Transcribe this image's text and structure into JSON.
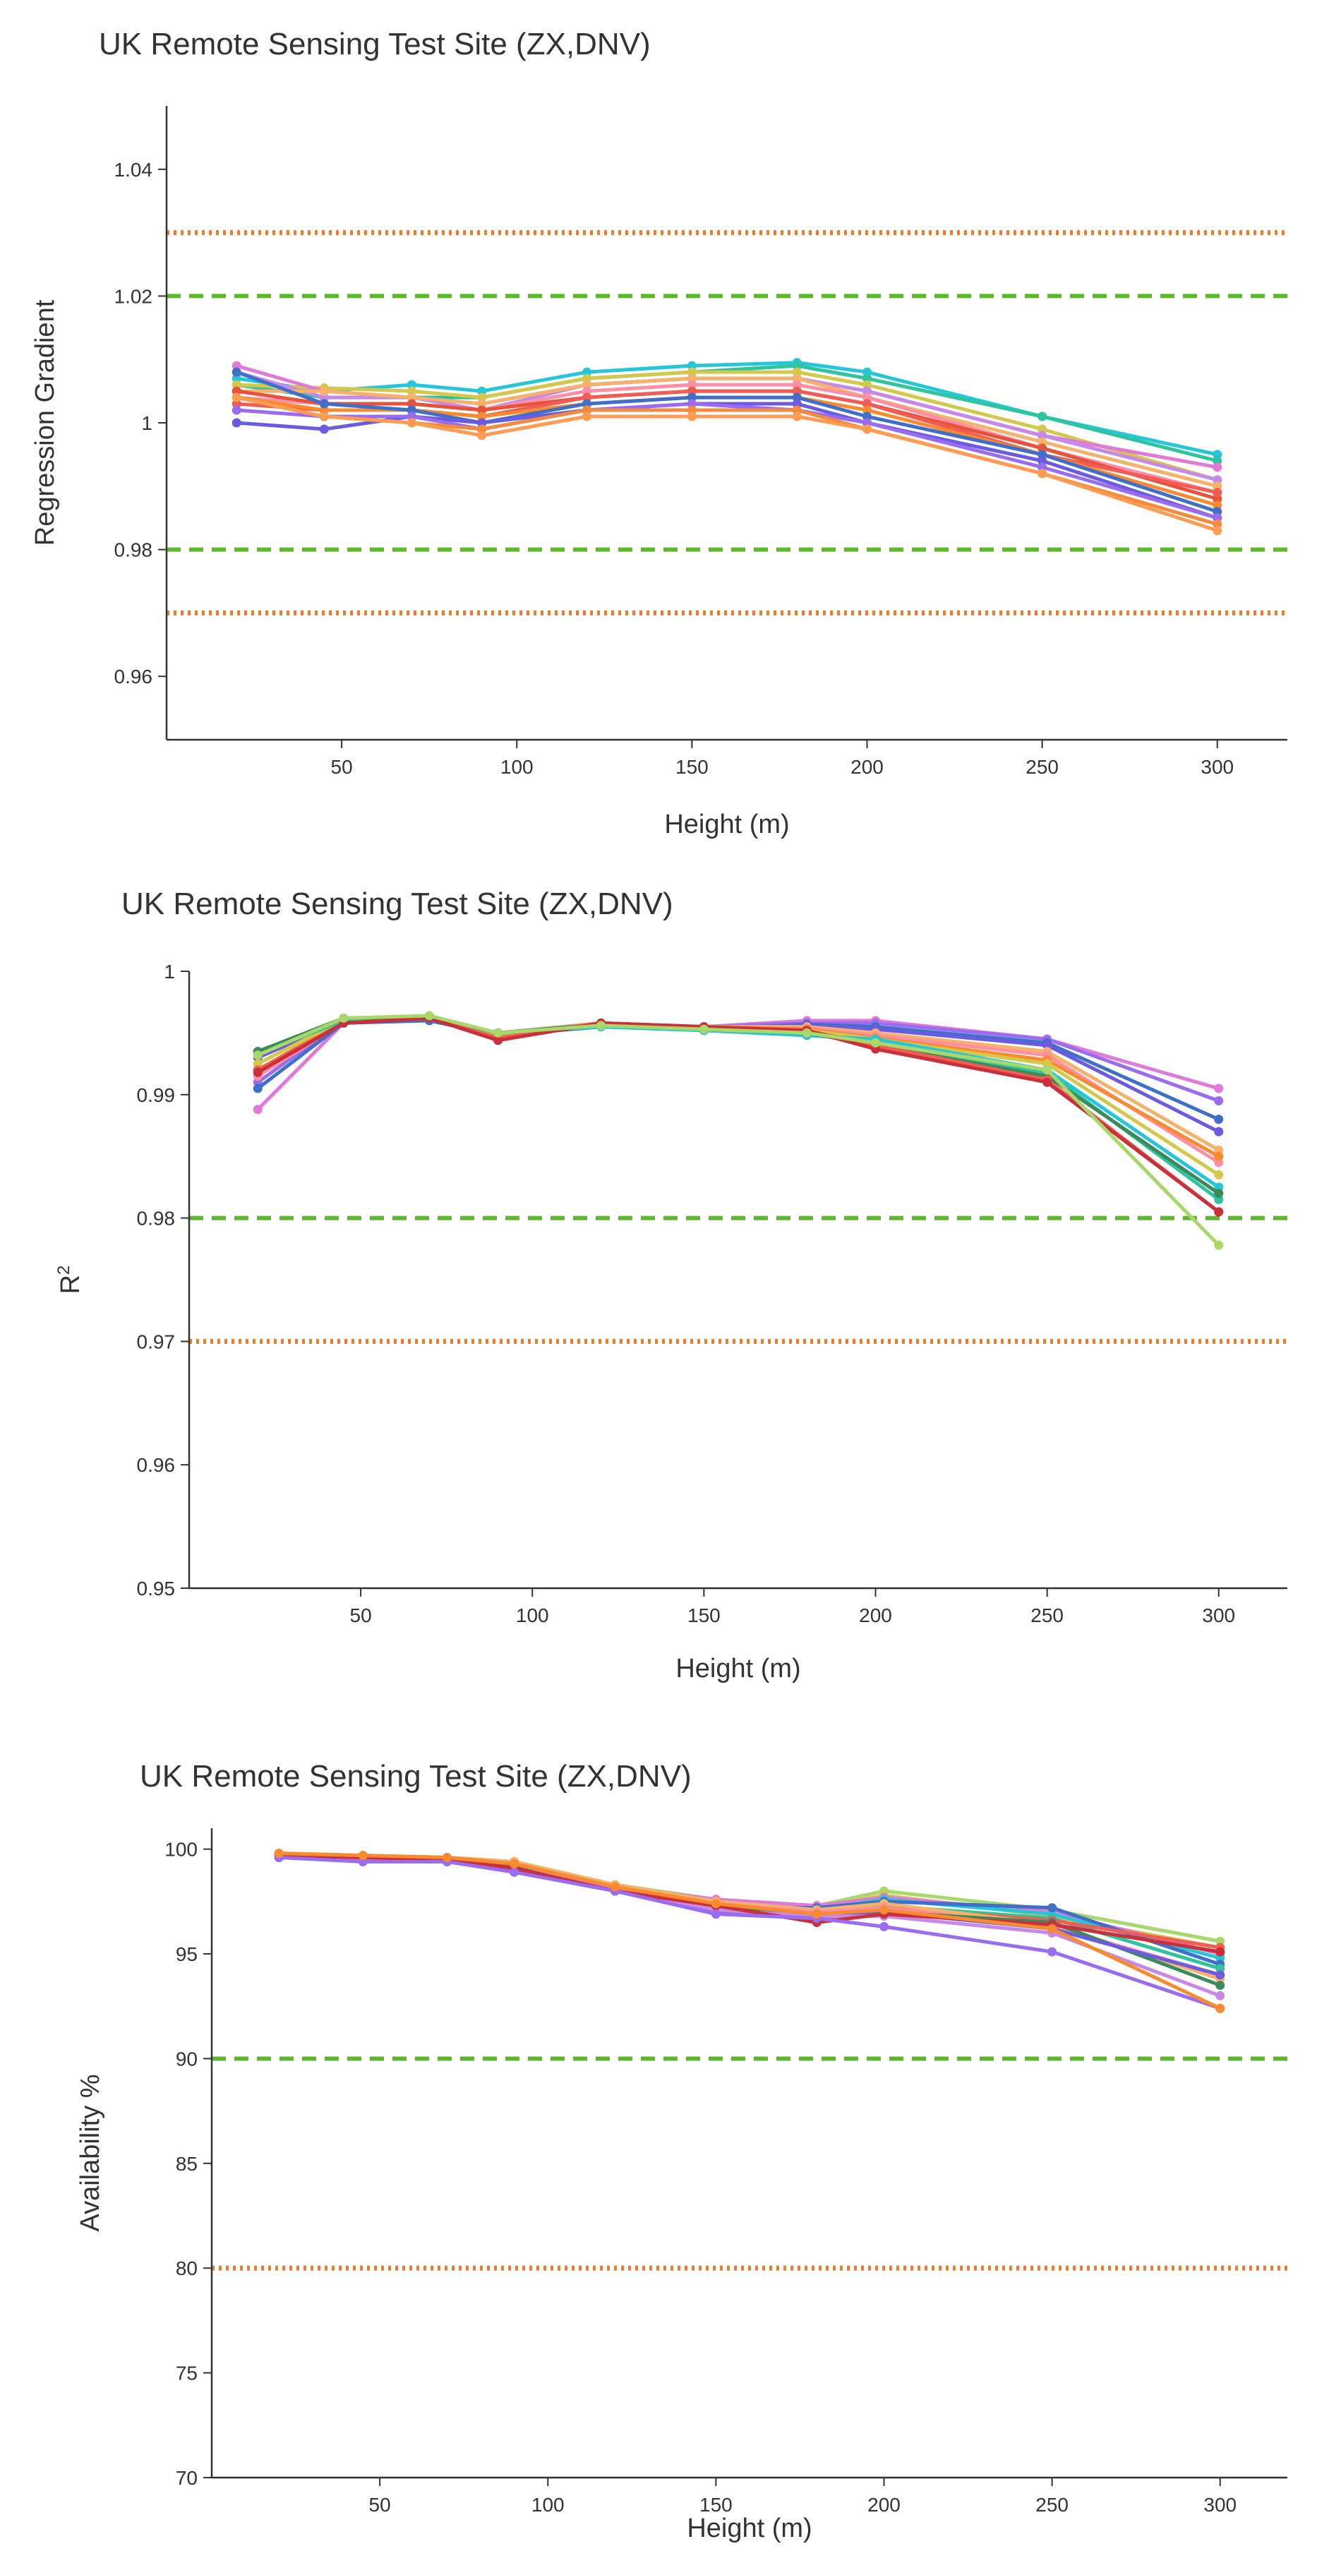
{
  "chart_data": [
    {
      "type": "line",
      "title": "UK Remote Sensing Test Site (ZX,DNV)",
      "xlabel": "Height (m)",
      "ylabel": "Regression Gradient",
      "ylabel_super": "",
      "xlim": [
        0,
        320
      ],
      "ylim": [
        0.95,
        1.05
      ],
      "xticks": [
        50,
        100,
        150,
        200,
        250,
        300
      ],
      "yticks": [
        0.96,
        0.98,
        1,
        1.02,
        1.04
      ],
      "x": [
        20,
        45,
        70,
        90,
        120,
        150,
        180,
        200,
        250,
        300
      ],
      "reference_lines": [
        {
          "value": 1.03,
          "style": "dotted",
          "color": "#f07a2a"
        },
        {
          "value": 1.02,
          "style": "dashed",
          "color": "#5cb82e"
        },
        {
          "value": 0.98,
          "style": "dashed",
          "color": "#5cb82e"
        },
        {
          "value": 0.97,
          "style": "dotted",
          "color": "#f07a2a"
        }
      ],
      "grid": false,
      "legend": "none",
      "series": [
        {
          "color": "#26c6da",
          "values": [
            1.007,
            1.005,
            1.006,
            1.005,
            1.008,
            1.009,
            1.0095,
            1.008,
            1.001,
            0.995
          ]
        },
        {
          "color": "#2ec4a0",
          "values": [
            1.006,
            1.004,
            1.004,
            1.004,
            1.007,
            1.008,
            1.009,
            1.007,
            1.001,
            0.994
          ]
        },
        {
          "color": "#d4c84a",
          "values": [
            1.006,
            1.0055,
            1.005,
            1.004,
            1.007,
            1.008,
            1.008,
            1.006,
            0.999,
            0.991
          ]
        },
        {
          "color": "#e07ad8",
          "values": [
            1.009,
            1.005,
            1.004,
            1.003,
            1.006,
            1.007,
            1.007,
            1.005,
            0.998,
            0.993
          ]
        },
        {
          "color": "#c888e8",
          "values": [
            1.008,
            1.004,
            1.004,
            1.002,
            1.006,
            1.007,
            1.007,
            1.005,
            0.998,
            0.991
          ]
        },
        {
          "color": "#f7b26a",
          "values": [
            1.005,
            1.005,
            1.004,
            1.003,
            1.006,
            1.007,
            1.007,
            1.004,
            0.997,
            0.99
          ]
        },
        {
          "color": "#ff8fa6",
          "values": [
            1.004,
            1.003,
            1.003,
            1.002,
            1.005,
            1.006,
            1.006,
            1.004,
            0.996,
            0.989
          ]
        },
        {
          "color": "#e5533a",
          "values": [
            1.005,
            1.003,
            1.003,
            1.002,
            1.004,
            1.005,
            1.005,
            1.003,
            0.996,
            0.988
          ]
        },
        {
          "color": "#f25c54",
          "values": [
            1.003,
            1.002,
            1.002,
            1.001,
            1.004,
            1.005,
            1.005,
            1.003,
            0.995,
            0.989
          ]
        },
        {
          "color": "#f98a2e",
          "values": [
            1.004,
            1.002,
            1.002,
            1.001,
            1.003,
            1.004,
            1.004,
            1.002,
            0.995,
            0.987
          ]
        },
        {
          "color": "#3f6fc8",
          "values": [
            1.008,
            1.003,
            1.002,
            1.0,
            1.003,
            1.004,
            1.004,
            1.001,
            0.995,
            0.986
          ]
        },
        {
          "color": "#6a5be0",
          "values": [
            1.0,
            0.999,
            1.001,
            1.0,
            1.002,
            1.003,
            1.003,
            1.0,
            0.994,
            0.985
          ]
        },
        {
          "color": "#9a6df0",
          "values": [
            1.002,
            1.001,
            1.001,
            0.999,
            1.002,
            1.003,
            1.002,
            1.0,
            0.993,
            0.985
          ]
        },
        {
          "color": "#f58a3c",
          "values": [
            1.004,
            1.001,
            1.0,
            0.999,
            1.002,
            1.002,
            1.002,
            0.999,
            0.992,
            0.984
          ]
        },
        {
          "color": "#fd9c52",
          "values": [
            1.004,
            1.001,
            1.0,
            0.998,
            1.001,
            1.001,
            1.001,
            0.999,
            0.992,
            0.983
          ]
        }
      ]
    },
    {
      "type": "line",
      "title": "UK Remote Sensing Test Site (ZX,DNV)",
      "xlabel": "Height (m)",
      "ylabel": "R",
      "ylabel_super": "2",
      "xlim": [
        0,
        320
      ],
      "ylim": [
        0.95,
        1.0
      ],
      "xticks": [
        50,
        100,
        150,
        200,
        250,
        300
      ],
      "yticks": [
        0.95,
        0.96,
        0.97,
        0.98,
        0.99,
        1
      ],
      "x": [
        20,
        45,
        70,
        90,
        120,
        150,
        180,
        200,
        250,
        300
      ],
      "reference_lines": [
        {
          "value": 0.98,
          "style": "dashed",
          "color": "#5cb82e"
        },
        {
          "value": 0.97,
          "style": "dotted",
          "color": "#f07a2a"
        }
      ],
      "grid": false,
      "legend": "none",
      "series": [
        {
          "color": "#e07ad8",
          "values": [
            0.9888,
            0.9958,
            0.9962,
            0.995,
            0.9958,
            0.9955,
            0.996,
            0.996,
            0.9945,
            0.9905
          ]
        },
        {
          "color": "#9a6df0",
          "values": [
            0.991,
            0.996,
            0.9962,
            0.995,
            0.9958,
            0.9955,
            0.9958,
            0.9958,
            0.9945,
            0.9895
          ]
        },
        {
          "color": "#3f6fc8",
          "values": [
            0.9905,
            0.9958,
            0.996,
            0.9948,
            0.9955,
            0.9953,
            0.9957,
            0.9955,
            0.9942,
            0.988
          ]
        },
        {
          "color": "#6a5be0",
          "values": [
            0.993,
            0.996,
            0.9962,
            0.995,
            0.9957,
            0.9954,
            0.9956,
            0.9953,
            0.994,
            0.987
          ]
        },
        {
          "color": "#f7b26a",
          "values": [
            0.992,
            0.996,
            0.9962,
            0.995,
            0.9958,
            0.9955,
            0.9955,
            0.995,
            0.9935,
            0.9855
          ]
        },
        {
          "color": "#ff8fa6",
          "values": [
            0.9915,
            0.9959,
            0.9962,
            0.9949,
            0.9957,
            0.9954,
            0.9954,
            0.9948,
            0.9932,
            0.9845
          ]
        },
        {
          "color": "#f98a2e",
          "values": [
            0.992,
            0.996,
            0.9962,
            0.9948,
            0.9958,
            0.9955,
            0.9953,
            0.9946,
            0.9928,
            0.985
          ]
        },
        {
          "color": "#d4c84a",
          "values": [
            0.9925,
            0.9961,
            0.9962,
            0.9949,
            0.9957,
            0.9954,
            0.9952,
            0.9945,
            0.9925,
            0.9835
          ]
        },
        {
          "color": "#26c6da",
          "values": [
            0.9935,
            0.9961,
            0.9963,
            0.995,
            0.9955,
            0.9952,
            0.9948,
            0.9945,
            0.992,
            0.9825
          ]
        },
        {
          "color": "#2ec4a0",
          "values": [
            0.9933,
            0.996,
            0.9962,
            0.995,
            0.9956,
            0.9953,
            0.995,
            0.9942,
            0.9918,
            0.9815
          ]
        },
        {
          "color": "#3a8a5c",
          "values": [
            0.9935,
            0.9962,
            0.9963,
            0.995,
            0.9957,
            0.9953,
            0.995,
            0.994,
            0.9915,
            0.982
          ]
        },
        {
          "color": "#f25c54",
          "values": [
            0.992,
            0.9958,
            0.9962,
            0.9946,
            0.9958,
            0.9955,
            0.9952,
            0.994,
            0.9912,
            0.9805
          ]
        },
        {
          "color": "#c9303a",
          "values": [
            0.9918,
            0.9958,
            0.9962,
            0.9944,
            0.9958,
            0.9955,
            0.9952,
            0.9937,
            0.991,
            0.9805
          ]
        },
        {
          "color": "#a8d86a",
          "values": [
            0.9932,
            0.9962,
            0.9964,
            0.995,
            0.9956,
            0.9953,
            0.995,
            0.9942,
            0.992,
            0.9778
          ]
        }
      ]
    },
    {
      "type": "line",
      "title": "UK Remote Sensing Test Site (ZX,DNV)",
      "xlabel": "Height (m)",
      "ylabel": "Availability %",
      "ylabel_super": "",
      "xlim": [
        0,
        320
      ],
      "ylim": [
        70,
        101
      ],
      "xticks": [
        50,
        100,
        150,
        200,
        250,
        300
      ],
      "yticks": [
        70,
        75,
        80,
        85,
        90,
        95,
        100
      ],
      "x": [
        20,
        45,
        70,
        90,
        120,
        150,
        180,
        200,
        250,
        300
      ],
      "reference_lines": [
        {
          "value": 90,
          "style": "dashed",
          "color": "#5cb82e"
        },
        {
          "value": 80,
          "style": "dotted",
          "color": "#f07a2a"
        }
      ],
      "grid": false,
      "legend": "none",
      "series": [
        {
          "color": "#a8d86a",
          "values": [
            99.7,
            99.6,
            99.6,
            99.4,
            98.3,
            97.6,
            97.3,
            98.0,
            97.1,
            95.6
          ]
        },
        {
          "color": "#d4c84a",
          "values": [
            99.8,
            99.6,
            99.6,
            99.3,
            98.2,
            97.5,
            97.2,
            97.8,
            96.8,
            95.3
          ]
        },
        {
          "color": "#e07ad8",
          "values": [
            99.8,
            99.7,
            99.6,
            99.4,
            98.2,
            97.6,
            97.3,
            97.7,
            97.0,
            95.0
          ]
        },
        {
          "color": "#26c6da",
          "values": [
            99.7,
            99.6,
            99.5,
            99.2,
            98.1,
            97.4,
            97.1,
            97.6,
            96.9,
            94.8
          ]
        },
        {
          "color": "#3f6fc8",
          "values": [
            99.6,
            99.5,
            99.5,
            99.3,
            98.0,
            97.2,
            97.2,
            97.5,
            97.2,
            94.5
          ]
        },
        {
          "color": "#2ec4a0",
          "values": [
            99.7,
            99.6,
            99.5,
            99.2,
            98.1,
            97.3,
            97.0,
            97.3,
            96.7,
            94.3
          ]
        },
        {
          "color": "#f25c54",
          "values": [
            99.8,
            99.6,
            99.6,
            99.3,
            98.2,
            97.5,
            96.6,
            97.2,
            96.6,
            95.3
          ]
        },
        {
          "color": "#f7b26a",
          "values": [
            99.8,
            99.7,
            99.6,
            99.4,
            98.3,
            97.5,
            97.1,
            97.4,
            96.4,
            93.8
          ]
        },
        {
          "color": "#ff8fa6",
          "values": [
            99.7,
            99.6,
            99.6,
            99.3,
            98.2,
            97.4,
            97.0,
            97.2,
            96.3,
            94.0
          ]
        },
        {
          "color": "#3a8a5c",
          "values": [
            99.6,
            99.5,
            99.5,
            99.2,
            98.0,
            97.2,
            96.8,
            97.0,
            96.5,
            93.5
          ]
        },
        {
          "color": "#6a5be0",
          "values": [
            99.6,
            99.5,
            99.4,
            99.0,
            98.0,
            97.0,
            96.9,
            97.0,
            96.2,
            94.0
          ]
        },
        {
          "color": "#c888e8",
          "values": [
            99.7,
            99.5,
            99.5,
            99.1,
            98.1,
            97.1,
            96.8,
            96.8,
            96.0,
            93.0
          ]
        },
        {
          "color": "#c9303a",
          "values": [
            99.7,
            99.6,
            99.5,
            99.1,
            98.0,
            97.3,
            96.5,
            96.9,
            96.4,
            95.1
          ]
        },
        {
          "color": "#9a6df0",
          "values": [
            99.6,
            99.4,
            99.4,
            98.9,
            98.0,
            96.9,
            96.7,
            96.3,
            95.1,
            92.4
          ]
        },
        {
          "color": "#f98a2e",
          "values": [
            99.8,
            99.7,
            99.6,
            99.3,
            98.2,
            97.4,
            96.9,
            97.1,
            96.2,
            92.4
          ]
        }
      ]
    }
  ]
}
